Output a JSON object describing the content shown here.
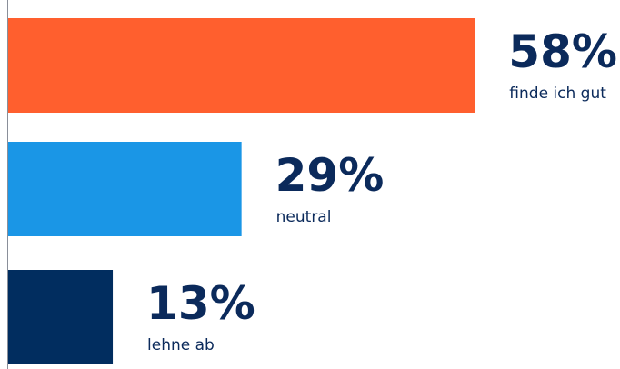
{
  "chart_data": {
    "type": "bar",
    "orientation": "horizontal",
    "categories": [
      "finde ich gut",
      "neutral",
      "lehne ab"
    ],
    "values": [
      58,
      29,
      13
    ],
    "value_labels": [
      "58%",
      "29%",
      "13%"
    ],
    "colors": [
      "#ff5f2e",
      "#1a96e6",
      "#012d5f"
    ]
  }
}
